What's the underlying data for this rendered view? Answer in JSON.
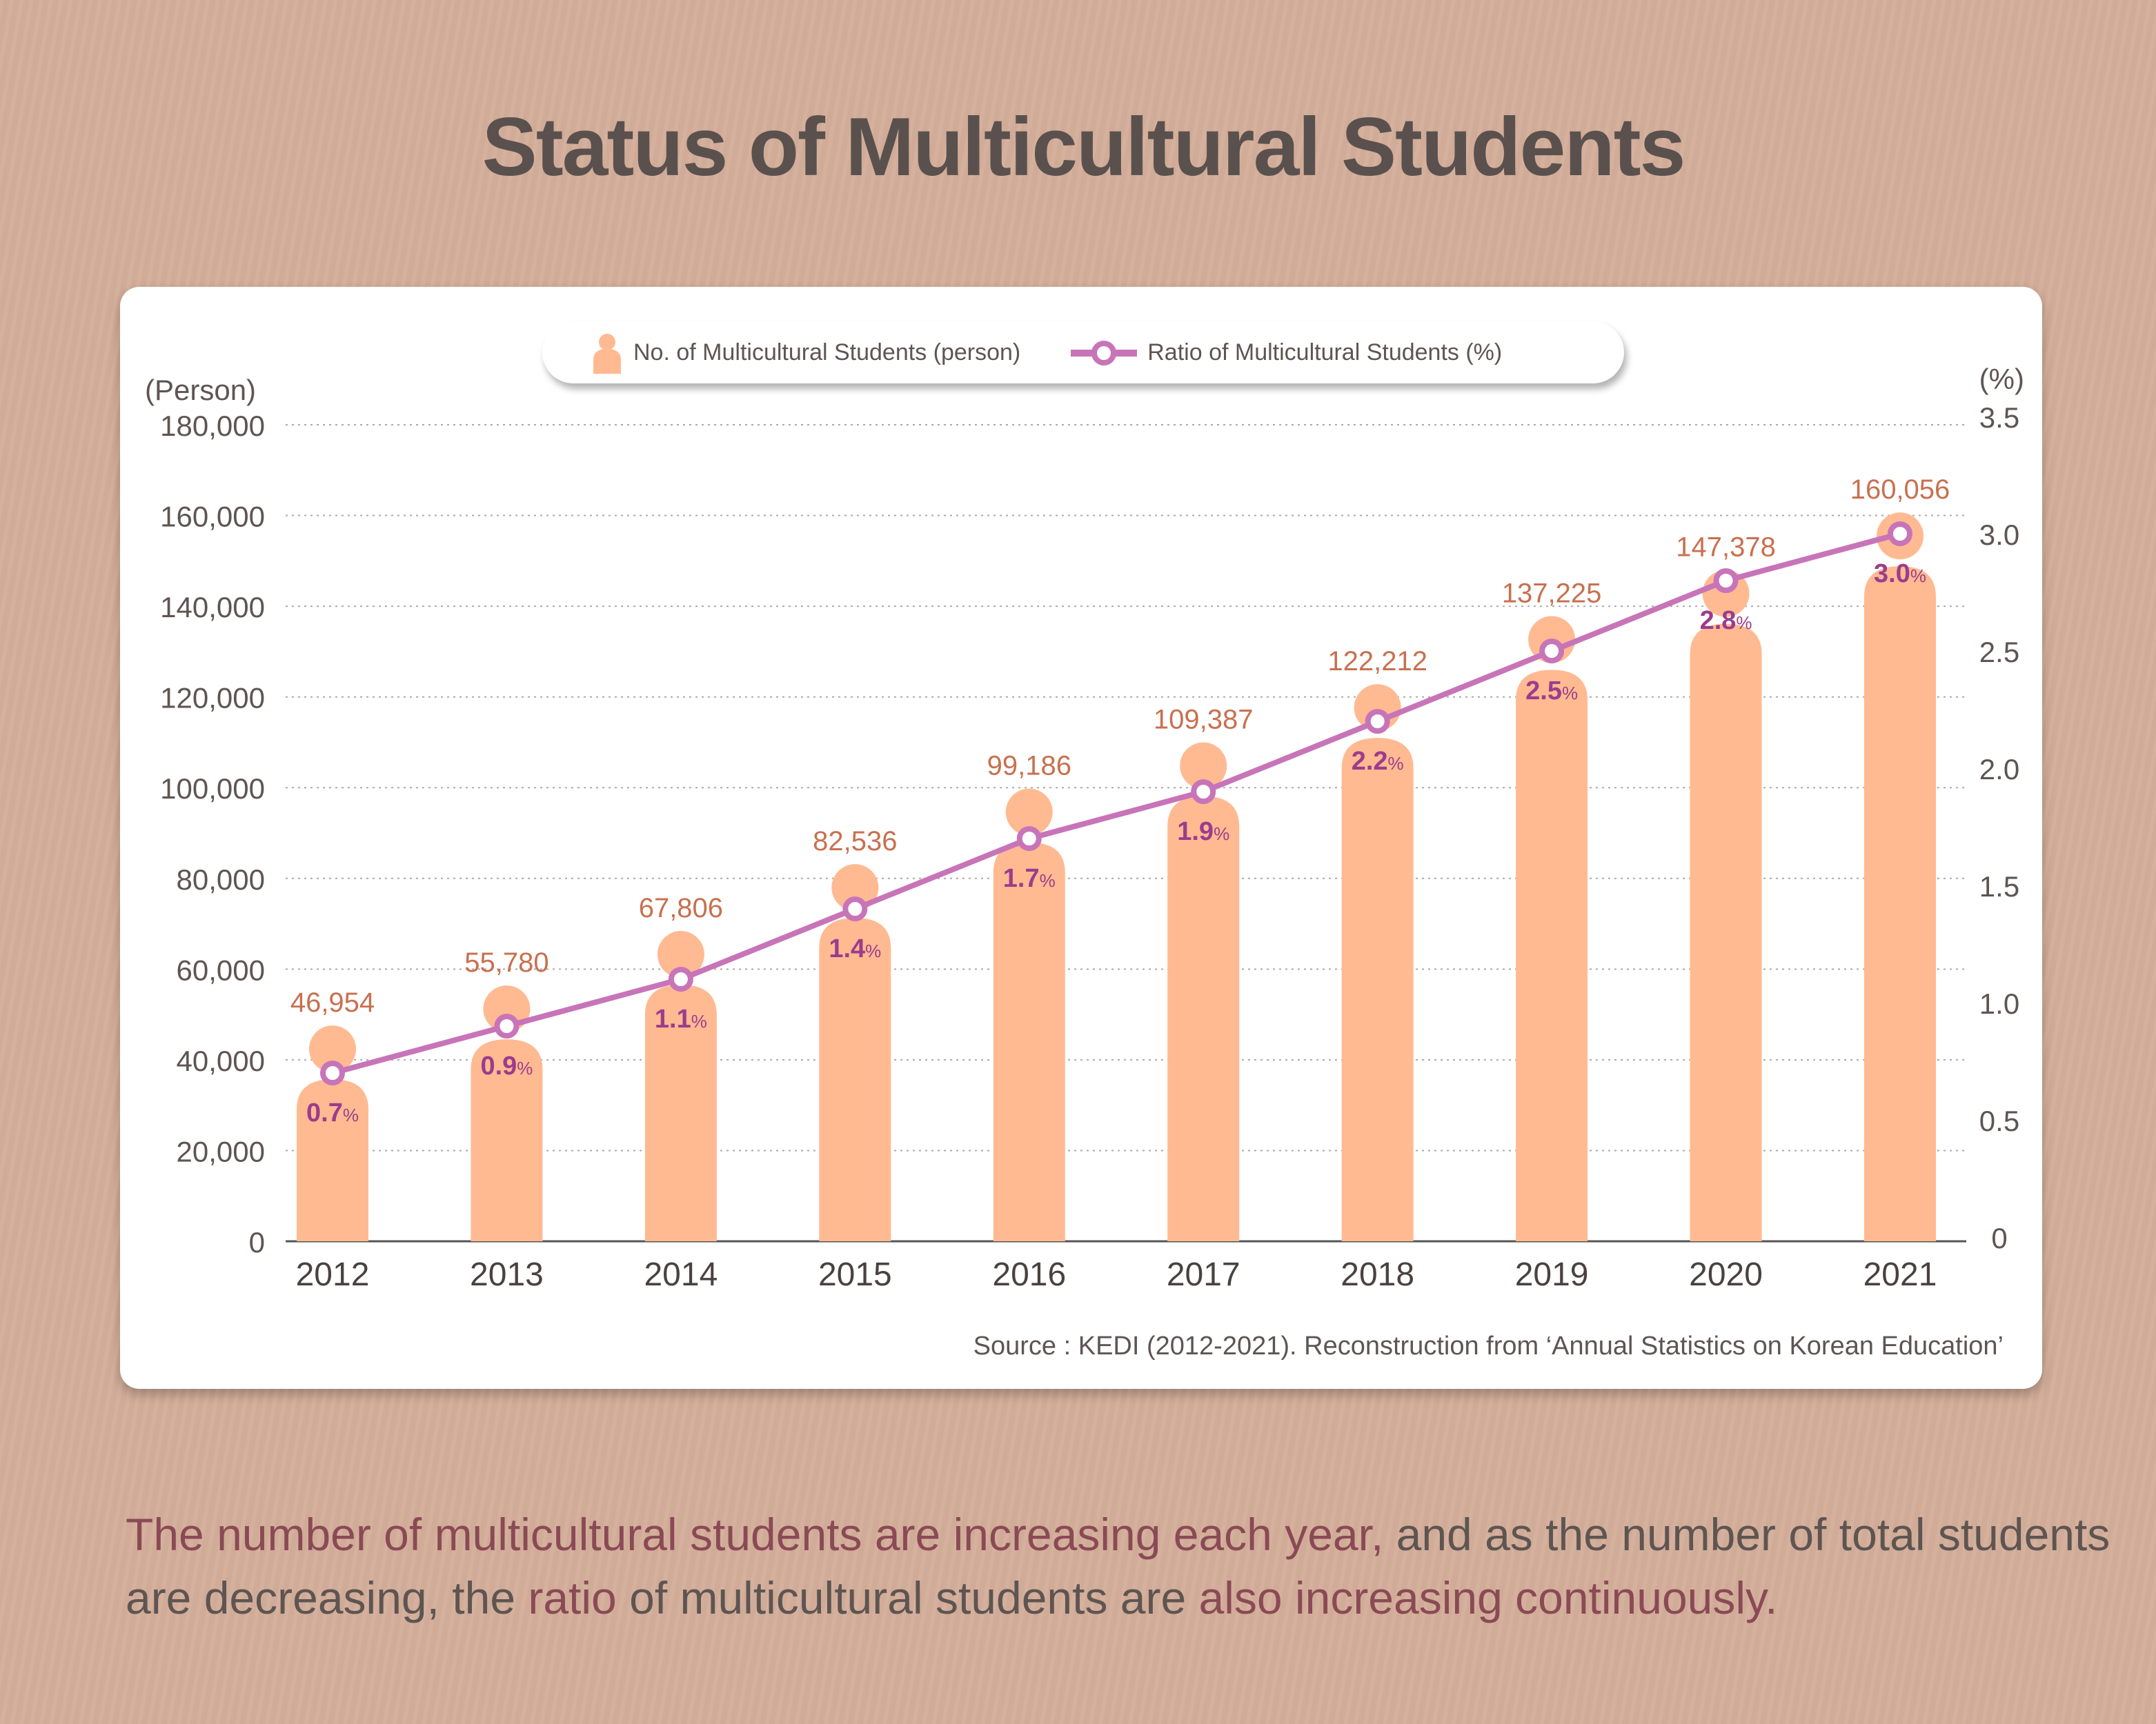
{
  "title": "Status of Multicultural Students",
  "caption": {
    "part1": "The number of multicultural students are increasing each year,",
    "part2": " and as the number of total students are decreasing, the ",
    "part3": "ratio",
    "part4": " of multicultural students are ",
    "part5": "also increasing continuously."
  },
  "colors": {
    "bar": "#ffba92",
    "value_label": "#c8704f",
    "line": "#c874b8",
    "ratio_label": "#9c3c8c",
    "background": "#d4ae9a",
    "highlight": "#8a4a55"
  },
  "chart_data": {
    "type": "bar+line",
    "categories": [
      "2012",
      "2013",
      "2014",
      "2015",
      "2016",
      "2017",
      "2018",
      "2019",
      "2020",
      "2021"
    ],
    "series": [
      {
        "name": "No. of Multicultural Students (person)",
        "type": "bar",
        "axis": "left",
        "values": [
          46954,
          55780,
          67806,
          82536,
          99186,
          109387,
          122212,
          137225,
          147378,
          160056
        ],
        "labels": [
          "46,954",
          "55,780",
          "67,806",
          "82,536",
          "99,186",
          "109,387",
          "122,212",
          "137,225",
          "147,378",
          "160,056"
        ]
      },
      {
        "name": "Ratio of Multicultural Students (%)",
        "type": "line",
        "axis": "right",
        "values": [
          0.7,
          0.9,
          1.1,
          1.4,
          1.7,
          1.9,
          2.2,
          2.5,
          2.8,
          3.0
        ],
        "labels": [
          "0.7",
          "0.9",
          "1.1",
          "1.4",
          "1.7",
          "1.9",
          "2.2",
          "2.5",
          "2.8",
          "3.0"
        ],
        "unit": "%"
      }
    ],
    "y_left": {
      "label": "(Person)",
      "range": [
        0,
        180000
      ],
      "ticks": [
        "0",
        "20,000",
        "40,000",
        "60,000",
        "80,000",
        "100,000",
        "120,000",
        "140,000",
        "160,000",
        "180,000"
      ]
    },
    "y_right": {
      "label": "(%)",
      "range": [
        0,
        3.5
      ],
      "ticks": [
        "0",
        "0.5",
        "1.0",
        "1.5",
        "2.0",
        "2.5",
        "3.0",
        "3.5"
      ]
    },
    "grid": true,
    "legend_position": "top-center",
    "source": "Source : KEDI (2012-2021). Reconstruction from ‘Annual Statistics on Korean Education’"
  }
}
